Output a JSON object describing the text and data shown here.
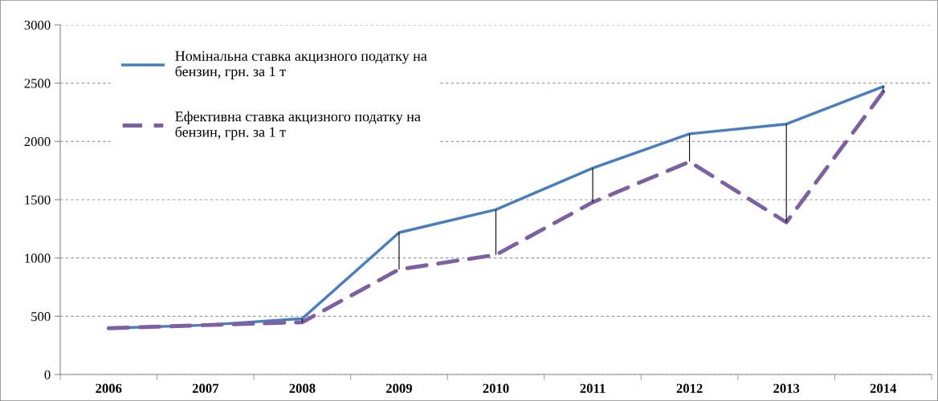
{
  "chart_data": {
    "type": "line",
    "categories": [
      "2006",
      "2007",
      "2008",
      "2009",
      "2010",
      "2011",
      "2012",
      "2013",
      "2014"
    ],
    "series": [
      {
        "name": "Номінальна ставка акцизного податку на бензин, грн. за 1 т",
        "color": "#4a7ebb",
        "line_style": "solid",
        "values": [
          397,
          424,
          480,
          1218,
          1415,
          1771,
          2065,
          2149,
          2470
        ]
      },
      {
        "name": "Ефективна ставка акцизного податку на бензин, грн. за 1 т",
        "color": "#7d60a0",
        "line_style": "dashed",
        "values": [
          397,
          424,
          449,
          902,
          1027,
          1478,
          1826,
          1306,
          2425
        ],
        "errors": [
          null,
          null,
          [
            449,
            480
          ],
          [
            902,
            1218
          ],
          [
            1027,
            1415
          ],
          [
            1478,
            1771
          ],
          [
            1826,
            2065
          ],
          [
            1306,
            2149
          ],
          [
            2425,
            2470
          ]
        ]
      }
    ],
    "ylim": [
      0,
      3000
    ],
    "yticks": [
      0,
      500,
      1000,
      1500,
      2000,
      2500,
      3000
    ],
    "grid": "y",
    "legend": "top left",
    "marker": "none"
  }
}
